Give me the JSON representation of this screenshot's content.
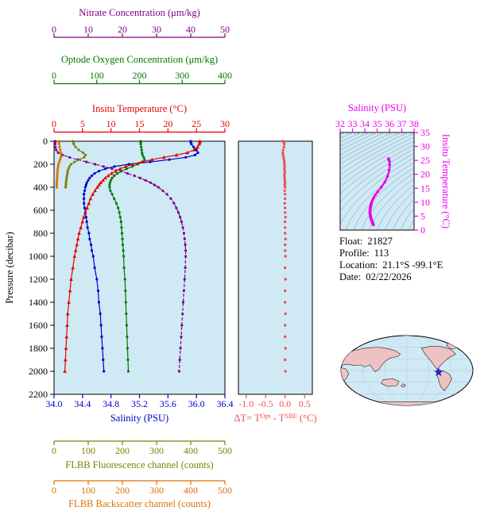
{
  "info": {
    "lines": [
      {
        "label": "Float:",
        "value": "21827"
      },
      {
        "label": "Profile:",
        "value": "113"
      },
      {
        "label": "Location:",
        "value": "21.1°S -99.1°E"
      },
      {
        "label": "Date:",
        "value": "02/22/2026"
      }
    ]
  },
  "colors": {
    "plot_bg": "#cfe9f5",
    "frame": "#000000",
    "text": "#000000"
  },
  "chart_data": [
    {
      "id": "main_profile",
      "type": "line",
      "ylabel": "Pressure (decibar)",
      "ylim": [
        0,
        2200
      ],
      "yticks": [
        0,
        200,
        400,
        600,
        800,
        1000,
        1200,
        1400,
        1600,
        1800,
        2000,
        2200
      ],
      "x_axes": [
        {
          "id": "nitrate",
          "title": "Nitrate Concentration (μm/kg)",
          "color": "#800080",
          "lim": [
            0,
            50
          ],
          "ticks": [
            0,
            10,
            20,
            30,
            40,
            50
          ],
          "tick_labels": [
            "0",
            "10",
            "20",
            "30",
            "40",
            "50"
          ]
        },
        {
          "id": "oxygen",
          "title": "Optode Oxygen Concentration (μm/kg)",
          "color": "#007a00",
          "lim": [
            0,
            400
          ],
          "ticks": [
            0,
            100,
            200,
            300,
            400
          ],
          "tick_labels": [
            "0",
            "100",
            "200",
            "300",
            "400"
          ]
        },
        {
          "id": "temperature",
          "title": "Insitu Temperature (°C)",
          "color": "#e60000",
          "lim": [
            0,
            30
          ],
          "ticks": [
            0,
            5,
            10,
            15,
            20,
            25,
            30
          ],
          "tick_labels": [
            "0",
            "5",
            "10",
            "15",
            "20",
            "25",
            "30"
          ]
        },
        {
          "id": "salinity",
          "title": "Salinity (PSU)",
          "color": "#0000cc",
          "lim": [
            34.0,
            36.4
          ],
          "ticks": [
            34.0,
            34.4,
            34.8,
            35.2,
            35.6,
            36.0,
            36.4
          ],
          "tick_labels": [
            "34.0",
            "34.4",
            "34.8",
            "35.2",
            "35.6",
            "36.0",
            "36.4"
          ]
        },
        {
          "id": "fluorescence",
          "title": "FLBB Fluorescence channel (counts)",
          "color": "#7f7f00",
          "lim": [
            0,
            500
          ],
          "ticks": [
            0,
            100,
            200,
            300,
            400,
            500
          ],
          "tick_labels": [
            "0",
            "100",
            "200",
            "300",
            "400",
            "500"
          ]
        },
        {
          "id": "backscatter",
          "title": "FLBB Backscatter channel (counts)",
          "color": "#e06f00",
          "lim": [
            0,
            500
          ],
          "ticks": [
            0,
            100,
            200,
            300,
            400,
            500
          ],
          "tick_labels": [
            "0",
            "100",
            "200",
            "300",
            "400",
            "500"
          ]
        }
      ],
      "series": [
        {
          "name": "nitrate",
          "axis": "nitrate",
          "color": "#800080",
          "marker": "circle",
          "dash": true,
          "pressure": [
            0,
            10,
            25,
            50,
            75,
            100,
            120,
            140,
            160,
            180,
            200,
            220,
            240,
            260,
            280,
            300,
            320,
            340,
            360,
            380,
            400,
            430,
            460,
            500,
            540,
            580,
            620,
            660,
            700,
            750,
            800,
            850,
            900,
            950,
            1000,
            1100,
            1200,
            1300,
            1400,
            1500,
            1600,
            1700,
            1800,
            1900,
            2000
          ],
          "values": [
            0.3,
            0.3,
            0.3,
            0.4,
            0.6,
            1.2,
            2.5,
            4.5,
            7.0,
            9.5,
            12.0,
            14.5,
            17.0,
            19.5,
            21.5,
            23.5,
            25.2,
            26.8,
            28.2,
            29.4,
            30.5,
            31.8,
            33.0,
            34.2,
            35.1,
            35.8,
            36.4,
            36.9,
            37.3,
            37.7,
            38.0,
            38.2,
            38.4,
            38.5,
            38.5,
            38.4,
            38.2,
            38.0,
            37.8,
            37.6,
            37.4,
            37.2,
            37.0,
            36.8,
            36.6
          ]
        },
        {
          "name": "optode-oxygen",
          "axis": "oxygen",
          "color": "#007a00",
          "marker": "circle",
          "dash": false,
          "pressure": [
            0,
            10,
            25,
            50,
            75,
            100,
            120,
            140,
            160,
            180,
            200,
            220,
            240,
            260,
            280,
            300,
            320,
            340,
            360,
            380,
            400,
            430,
            460,
            500,
            540,
            580,
            620,
            660,
            700,
            750,
            800,
            850,
            900,
            950,
            1000,
            1100,
            1200,
            1300,
            1400,
            1500,
            1600,
            1700,
            1800,
            1900,
            2000
          ],
          "values": [
            203,
            203,
            203,
            204,
            205,
            206,
            207,
            210,
            212,
            208,
            196,
            183,
            170,
            158,
            148,
            141,
            136,
            133,
            131,
            130,
            130,
            132,
            136,
            141,
            146,
            150,
            153,
            155,
            157,
            158,
            159,
            160,
            161,
            162,
            163,
            164,
            166,
            167,
            168,
            169,
            170,
            171,
            172,
            173,
            174
          ]
        },
        {
          "name": "flbb-fluorescence",
          "axis": "fluorescence",
          "color": "#7f7f00",
          "marker": "circle",
          "dash": false,
          "pressure": [
            0,
            10,
            25,
            50,
            75,
            100,
            120,
            140,
            160,
            180,
            200,
            220,
            240,
            260,
            280,
            300,
            320,
            340,
            360,
            380,
            400
          ],
          "values": [
            55,
            56,
            58,
            63,
            72,
            85,
            92,
            88,
            75,
            60,
            50,
            45,
            42,
            40,
            39,
            38,
            37,
            36,
            35,
            35,
            34
          ]
        },
        {
          "name": "flbb-backscatter",
          "axis": "backscatter",
          "color": "#e06f00",
          "marker": "circle",
          "dash": false,
          "pressure": [
            0,
            10,
            25,
            50,
            75,
            100,
            120,
            140,
            160,
            180,
            200,
            220,
            240,
            260,
            280,
            300,
            320,
            340,
            360,
            380,
            400
          ],
          "values": [
            14,
            14,
            15,
            16,
            18,
            20,
            21,
            20,
            18,
            15,
            13,
            12,
            11,
            10,
            10,
            9,
            9,
            9,
            8,
            8,
            8
          ]
        },
        {
          "name": "salinity",
          "axis": "salinity",
          "color": "#0000cc",
          "marker": "circle",
          "dash": false,
          "pressure": [
            0,
            10,
            25,
            50,
            75,
            100,
            120,
            140,
            160,
            180,
            200,
            220,
            240,
            260,
            280,
            300,
            320,
            340,
            360,
            380,
            400,
            430,
            460,
            500,
            540,
            580,
            620,
            660,
            700,
            750,
            800,
            850,
            900,
            950,
            1000,
            1100,
            1200,
            1300,
            1400,
            1500,
            1600,
            1700,
            1800,
            1900,
            2000
          ],
          "values": [
            35.92,
            35.92,
            35.93,
            35.96,
            36.0,
            36.02,
            35.98,
            35.85,
            35.62,
            35.35,
            35.05,
            34.85,
            34.72,
            34.63,
            34.57,
            34.53,
            34.5,
            34.48,
            34.46,
            34.45,
            34.44,
            34.43,
            34.42,
            34.42,
            34.42,
            34.43,
            34.44,
            34.45,
            34.46,
            34.47,
            34.49,
            34.5,
            34.52,
            34.53,
            34.55,
            34.57,
            34.6,
            34.62,
            34.63,
            34.65,
            34.66,
            34.67,
            34.68,
            34.69,
            34.7
          ]
        },
        {
          "name": "insitu-temperature",
          "axis": "temperature",
          "color": "#e60000",
          "marker": "triangle",
          "dash": false,
          "pressure": [
            0,
            10,
            25,
            50,
            75,
            100,
            120,
            140,
            160,
            180,
            200,
            220,
            240,
            260,
            280,
            300,
            320,
            340,
            360,
            380,
            400,
            430,
            460,
            500,
            540,
            580,
            620,
            660,
            700,
            750,
            800,
            850,
            900,
            950,
            1000,
            1100,
            1200,
            1300,
            1400,
            1500,
            1600,
            1700,
            1800,
            1900,
            2000
          ],
          "values": [
            25.6,
            25.6,
            25.5,
            25.2,
            24.6,
            23.4,
            21.5,
            19.3,
            17.2,
            15.4,
            13.8,
            12.6,
            11.6,
            10.8,
            10.1,
            9.5,
            9.0,
            8.6,
            8.2,
            7.9,
            7.6,
            7.2,
            6.8,
            6.4,
            6.1,
            5.8,
            5.5,
            5.2,
            5.0,
            4.7,
            4.4,
            4.2,
            4.0,
            3.8,
            3.6,
            3.3,
            3.0,
            2.8,
            2.6,
            2.4,
            2.3,
            2.2,
            2.1,
            2.0,
            1.9
          ]
        }
      ]
    },
    {
      "id": "delta_t",
      "type": "scatter",
      "title_parts": [
        "ΔT= T",
        "Opt",
        " - T",
        "SBE",
        " (°C)"
      ],
      "color": "#ef5050",
      "xlim": [
        -1.2,
        0.7
      ],
      "xticks": [
        -1.0,
        -0.5,
        0.0,
        0.5
      ],
      "xtick_labels": [
        "-1.0",
        "-0.5",
        "0.0",
        "0.5"
      ],
      "ylim": [
        0,
        2200
      ],
      "pressure": [
        0,
        10,
        25,
        50,
        75,
        100,
        120,
        140,
        160,
        180,
        200,
        220,
        240,
        260,
        280,
        300,
        320,
        340,
        360,
        380,
        400,
        430,
        460,
        500,
        540,
        580,
        620,
        660,
        700,
        750,
        800,
        850,
        900,
        950,
        1000,
        1100,
        1200,
        1300,
        1400,
        1500,
        1600,
        1700,
        1800,
        1900,
        2000
      ],
      "values": [
        -0.06,
        -0.04,
        -0.02,
        -0.03,
        -0.05,
        -0.06,
        -0.05,
        -0.04,
        -0.03,
        -0.02,
        -0.02,
        -0.01,
        -0.02,
        -0.01,
        -0.01,
        -0.02,
        -0.01,
        -0.01,
        0.0,
        -0.01,
        0.0,
        -0.01,
        0.0,
        0.0,
        -0.01,
        0.0,
        0.0,
        0.01,
        0.0,
        0.0,
        0.0,
        0.01,
        0.0,
        0.0,
        0.01,
        0.0,
        0.01,
        0.0,
        0.0,
        0.01,
        0.0,
        0.0,
        0.01,
        0.0,
        0.01
      ]
    },
    {
      "id": "ts_diagram",
      "type": "line",
      "xlabel": "Salinity (PSU)",
      "ylabel_right": "Insitu Temperature (°C)",
      "color": "#e800e8",
      "isopycnal_color": "#7593ad",
      "iso_min": 16,
      "iso_max": 30.5,
      "iso_step": 0.5,
      "xlim": [
        32,
        38
      ],
      "xticks": [
        32,
        33,
        34,
        35,
        36,
        37,
        38
      ],
      "xtick_labels": [
        "32",
        "33",
        "34",
        "35",
        "36",
        "37",
        "38"
      ],
      "ylim": [
        0,
        35
      ],
      "yticks": [
        0,
        5,
        10,
        15,
        20,
        25,
        30,
        35
      ],
      "ytick_labels": [
        "0",
        "5",
        "10",
        "15",
        "20",
        "25",
        "30",
        "35"
      ],
      "salinity": [
        34.7,
        34.69,
        34.68,
        34.67,
        34.66,
        34.65,
        34.63,
        34.62,
        34.6,
        34.57,
        34.55,
        34.53,
        34.52,
        34.5,
        34.49,
        34.47,
        34.46,
        34.45,
        34.44,
        34.43,
        34.42,
        34.42,
        34.42,
        34.43,
        34.44,
        34.45,
        34.46,
        34.48,
        34.5,
        34.53,
        34.57,
        34.63,
        34.72,
        34.85,
        35.05,
        35.35,
        35.62,
        35.85,
        35.98,
        36.02,
        36.0,
        35.96,
        35.93,
        35.92,
        35.92
      ],
      "temperature": [
        1.9,
        2.0,
        2.1,
        2.2,
        2.3,
        2.4,
        2.6,
        2.8,
        3.0,
        3.3,
        3.6,
        3.8,
        4.0,
        4.2,
        4.4,
        4.7,
        5.0,
        5.2,
        5.5,
        5.8,
        6.1,
        6.4,
        6.8,
        7.2,
        7.6,
        7.9,
        8.2,
        8.6,
        9.0,
        9.5,
        10.1,
        10.8,
        11.6,
        12.6,
        13.8,
        15.4,
        17.2,
        19.3,
        21.5,
        23.4,
        24.6,
        25.2,
        25.5,
        25.6,
        25.6
      ]
    },
    {
      "id": "world_map",
      "type": "map",
      "ocean_color": "#cfe9f5",
      "land_color": "#eec2c2",
      "outline_color": "#000000",
      "marker": {
        "symbol": "star",
        "color": "#2222cc"
      }
    }
  ]
}
